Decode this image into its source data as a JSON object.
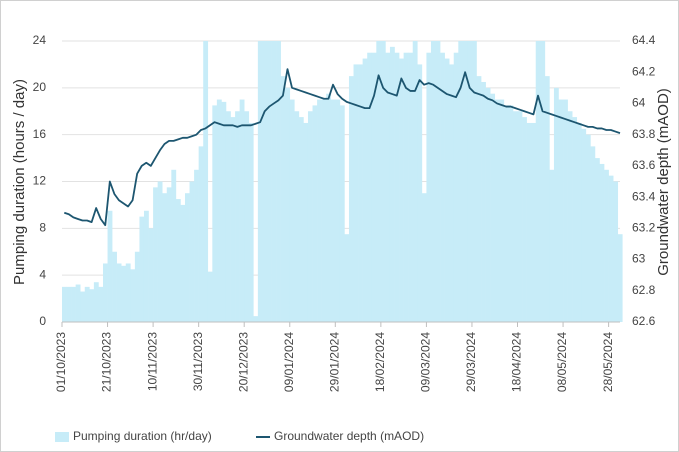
{
  "chart_data": {
    "type": "bar-line",
    "y_label": "Pumping duration (hours / day)",
    "y2_label": "Groundwater depth (mAOD)",
    "x": [
      "01/10/2023",
      "03/10/2023",
      "05/10/2023",
      "07/10/2023",
      "09/10/2023",
      "11/10/2023",
      "13/10/2023",
      "15/10/2023",
      "17/10/2023",
      "19/10/2023",
      "21/10/2023",
      "23/10/2023",
      "25/10/2023",
      "27/10/2023",
      "29/10/2023",
      "31/10/2023",
      "02/11/2023",
      "04/11/2023",
      "06/11/2023",
      "08/11/2023",
      "10/11/2023",
      "12/11/2023",
      "14/11/2023",
      "16/11/2023",
      "18/11/2023",
      "20/11/2023",
      "22/11/2023",
      "24/11/2023",
      "26/11/2023",
      "28/11/2023",
      "30/11/2023",
      "02/12/2023",
      "04/12/2023",
      "06/12/2023",
      "08/12/2023",
      "10/12/2023",
      "12/12/2023",
      "14/12/2023",
      "16/12/2023",
      "18/12/2023",
      "20/12/2023",
      "22/12/2023",
      "24/12/2023",
      "26/12/2023",
      "28/12/2023",
      "30/12/2023",
      "01/01/2024",
      "03/01/2024",
      "05/01/2024",
      "07/01/2024",
      "09/01/2024",
      "11/01/2024",
      "13/01/2024",
      "15/01/2024",
      "17/01/2024",
      "19/01/2024",
      "21/01/2024",
      "23/01/2024",
      "25/01/2024",
      "27/01/2024",
      "29/01/2024",
      "31/01/2024",
      "02/02/2024",
      "04/02/2024",
      "06/02/2024",
      "08/02/2024",
      "10/02/2024",
      "12/02/2024",
      "14/02/2024",
      "16/02/2024",
      "18/02/2024",
      "20/02/2024",
      "22/02/2024",
      "24/02/2024",
      "26/02/2024",
      "28/02/2024",
      "01/03/2024",
      "03/03/2024",
      "05/03/2024",
      "07/03/2024",
      "09/03/2024",
      "11/03/2024",
      "13/03/2024",
      "15/03/2024",
      "17/03/2024",
      "19/03/2024",
      "21/03/2024",
      "23/03/2024",
      "25/03/2024",
      "27/03/2024",
      "29/03/2024",
      "31/03/2024",
      "02/04/2024",
      "04/04/2024",
      "06/04/2024",
      "08/04/2024",
      "10/04/2024",
      "12/04/2024",
      "14/04/2024",
      "16/04/2024",
      "18/04/2024",
      "20/04/2024",
      "22/04/2024",
      "24/04/2024",
      "26/04/2024",
      "28/04/2024",
      "30/04/2024",
      "02/05/2024",
      "04/05/2024",
      "06/05/2024",
      "08/05/2024",
      "10/05/2024",
      "12/05/2024",
      "14/05/2024",
      "16/05/2024",
      "18/05/2024",
      "20/05/2024",
      "22/05/2024",
      "24/05/2024",
      "26/05/2024",
      "28/05/2024",
      "30/05/2024",
      "01/06/2024"
    ],
    "xlim": [
      "01/10/2023",
      "02/06/2024"
    ],
    "xticks": [
      "01/10/2023",
      "21/10/2023",
      "10/11/2023",
      "30/11/2023",
      "20/12/2023",
      "09/01/2024",
      "29/01/2024",
      "18/02/2024",
      "09/03/2024",
      "29/03/2024",
      "18/04/2024",
      "08/05/2024",
      "28/05/2024"
    ],
    "ylim": [
      0,
      24
    ],
    "yticks": [
      0,
      4,
      8,
      12,
      16,
      20,
      24
    ],
    "y2lim": [
      62.6,
      64.4
    ],
    "y2ticks": [
      62.6,
      62.8,
      63,
      63.2,
      63.4,
      63.6,
      63.8,
      64,
      64.2,
      64.4
    ],
    "grid": true,
    "legend": "bottom",
    "series": [
      {
        "name": "Pumping duration (hr/day)",
        "type": "bar",
        "color": "#c7ecf8",
        "values": [
          3,
          3,
          3,
          3.2,
          2.6,
          3,
          2.8,
          3.4,
          3,
          5,
          9.5,
          6,
          5,
          4.8,
          5,
          4.5,
          6,
          9,
          9.5,
          8,
          11.5,
          12,
          11,
          11.5,
          13,
          10.5,
          10,
          11,
          12,
          13,
          15,
          24,
          4.3,
          18.5,
          19,
          18.8,
          18,
          17.5,
          18,
          19,
          18,
          17,
          0.5,
          24,
          24,
          24,
          24,
          24,
          21,
          20,
          19,
          18,
          17.5,
          17,
          18,
          18.5,
          19,
          19,
          19.5,
          19,
          19,
          18.5,
          7.5,
          21,
          22,
          22,
          22.5,
          23,
          23,
          24,
          24,
          23,
          23.5,
          23,
          22.5,
          23,
          23,
          24,
          22,
          11,
          23,
          24,
          24,
          23,
          22.5,
          22,
          23,
          24,
          24,
          24,
          24,
          21,
          20.5,
          20,
          19.5,
          19,
          19,
          18.5,
          18.5,
          18,
          18,
          17.5,
          17,
          17,
          24,
          24,
          21,
          13,
          20,
          19,
          19,
          18,
          17.5,
          17,
          16.5,
          16,
          15,
          14,
          13.5,
          13,
          12.5,
          12,
          7.5
        ]
      },
      {
        "name": "Groundwater depth (mAOD)",
        "type": "line",
        "axis": "y2",
        "color": "#1d5670",
        "values": [
          63.3,
          63.29,
          63.27,
          63.26,
          63.25,
          63.25,
          63.24,
          63.33,
          63.26,
          63.22,
          63.5,
          63.42,
          63.38,
          63.36,
          63.34,
          63.38,
          63.55,
          63.6,
          63.62,
          63.6,
          63.65,
          63.7,
          63.74,
          63.76,
          63.76,
          63.77,
          63.78,
          63.78,
          63.79,
          63.8,
          63.83,
          63.84,
          63.86,
          63.88,
          63.87,
          63.86,
          63.86,
          63.86,
          63.85,
          63.86,
          63.86,
          63.86,
          63.87,
          63.88,
          63.95,
          63.98,
          64.0,
          64.02,
          64.05,
          64.22,
          64.1,
          64.09,
          64.08,
          64.07,
          64.06,
          64.05,
          64.04,
          64.03,
          64.03,
          64.12,
          64.06,
          64.03,
          64.01,
          64.0,
          63.99,
          63.98,
          63.97,
          63.97,
          64.05,
          64.18,
          64.1,
          64.07,
          64.06,
          64.05,
          64.16,
          64.1,
          64.08,
          64.08,
          64.15,
          64.12,
          64.13,
          64.12,
          64.1,
          64.08,
          64.06,
          64.05,
          64.04,
          64.1,
          64.2,
          64.1,
          64.07,
          64.06,
          64.05,
          64.03,
          64.02,
          64.0,
          63.99,
          63.98,
          63.98,
          63.97,
          63.96,
          63.95,
          63.94,
          63.93,
          64.05,
          63.95,
          63.94,
          63.93,
          63.92,
          63.91,
          63.9,
          63.89,
          63.88,
          63.87,
          63.86,
          63.85,
          63.85,
          63.84,
          63.84,
          63.83,
          63.83,
          63.82,
          63.81
        ]
      }
    ]
  }
}
